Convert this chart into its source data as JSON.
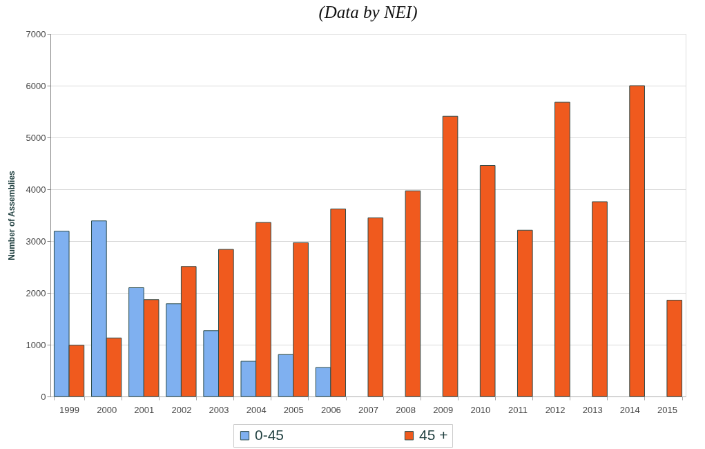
{
  "chart_data": {
    "type": "bar",
    "title": "(Data by NEI)",
    "ylabel": "Number of Assemblies",
    "categories": [
      "1999",
      "2000",
      "2001",
      "2002",
      "2003",
      "2004",
      "2005",
      "2006",
      "2007",
      "2008",
      "2009",
      "2010",
      "2011",
      "2012",
      "2013",
      "2014",
      "2015"
    ],
    "series": [
      {
        "name": "0-45",
        "color": "#7fb0f0",
        "values": [
          3190,
          3390,
          2100,
          1790,
          1270,
          680,
          810,
          560,
          null,
          null,
          null,
          null,
          null,
          null,
          null,
          null,
          null
        ]
      },
      {
        "name": "45 +",
        "color": "#f05a1e",
        "values": [
          990,
          1130,
          1870,
          2510,
          2840,
          3360,
          2970,
          3620,
          3450,
          3970,
          5410,
          4460,
          3210,
          5680,
          3760,
          6000,
          1860
        ]
      }
    ],
    "ylim": [
      0,
      7000
    ],
    "yticks": [
      0,
      1000,
      2000,
      3000,
      4000,
      5000,
      6000,
      7000
    ],
    "grid": "y",
    "legend": "bottom"
  }
}
